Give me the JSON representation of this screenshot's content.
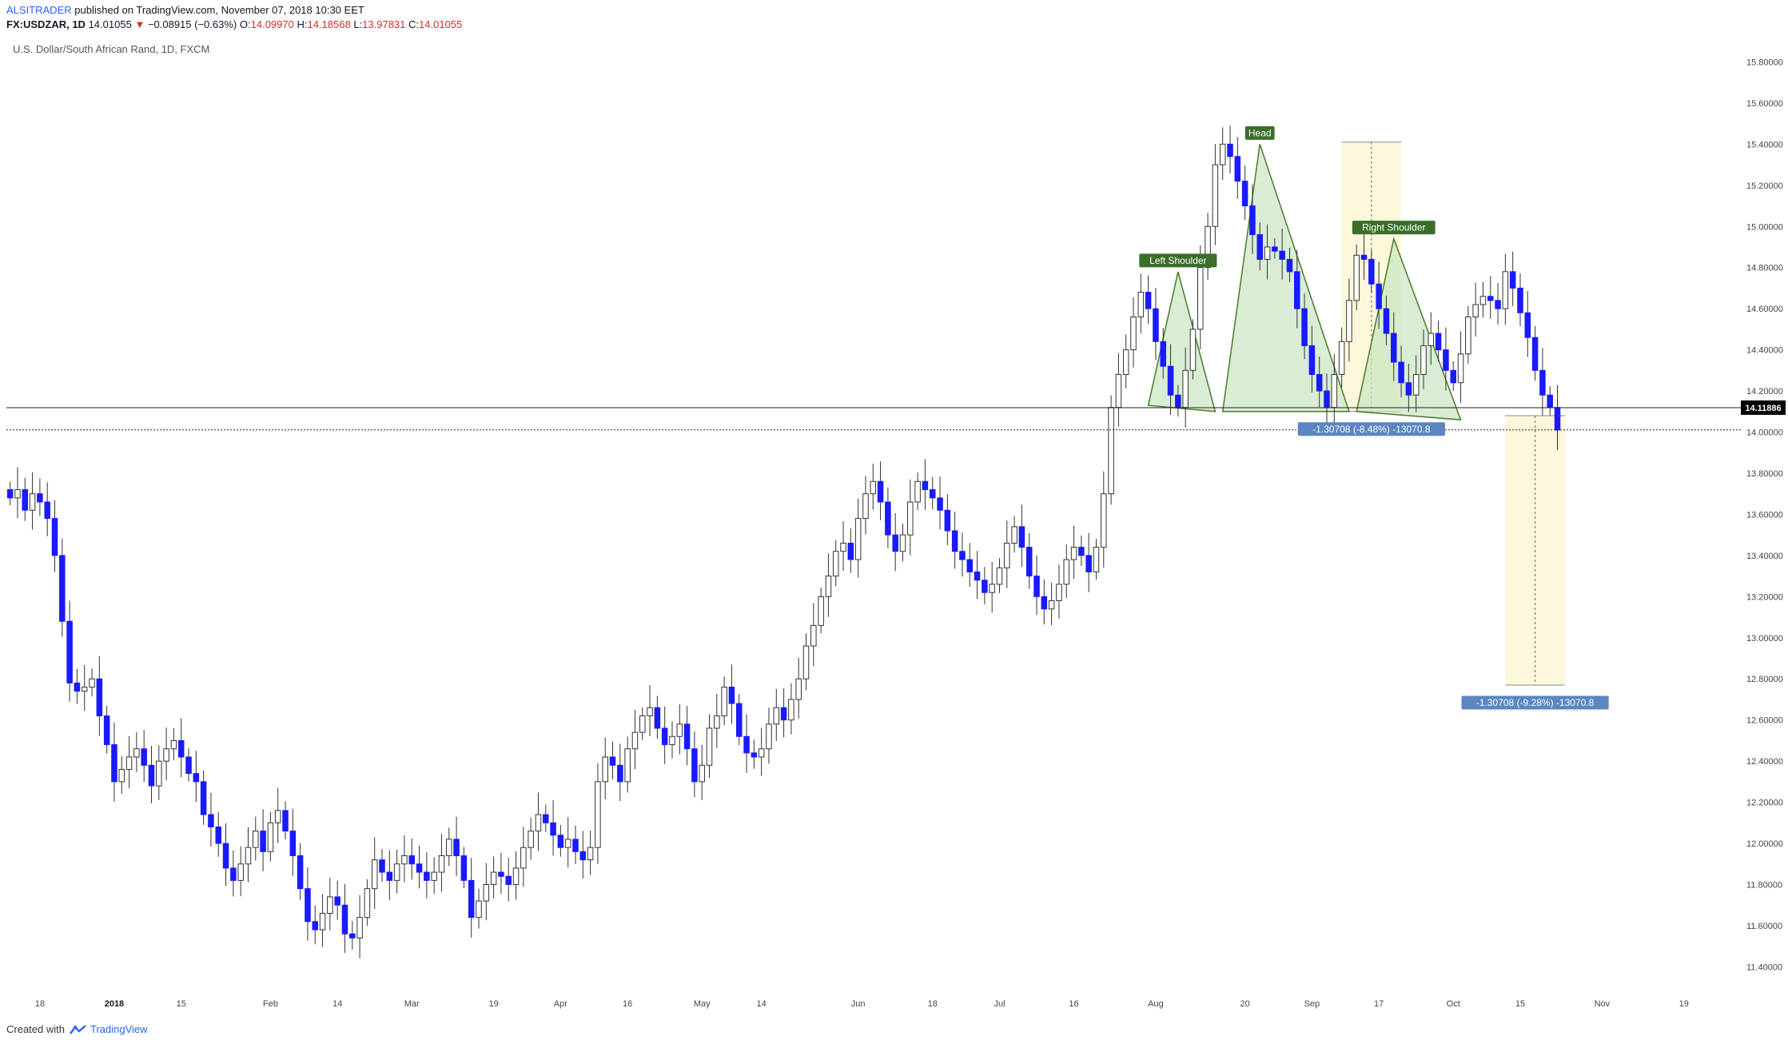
{
  "header": {
    "author": "ALSITRADER",
    "published": "published on TradingView.com, November 07, 2018 10:30 EET",
    "symbol": "FX:USDZAR, 1D",
    "last": "14.01055",
    "change_arrow": "▼",
    "change": "−0.08915 (−0.63%)",
    "open_label": "O:",
    "open": "14.09970",
    "high_label": "H:",
    "high": "14.18568",
    "low_label": "L:",
    "low": "13.97831",
    "close_label": "C:",
    "close": "14.01055"
  },
  "subtitle": "U.S. Dollar/South African Rand, 1D, FXCM",
  "footer": {
    "created_with": "Created with",
    "brand": "TradingView"
  },
  "colors": {
    "up": "#ffffff",
    "down": "#1a1aff",
    "pattern_fill": "#c8e6c0",
    "pattern_line": "#4a7a2a",
    "label_bg": "#3a6e2a",
    "measure_bg": "#5b86c2",
    "zone": "#fdf7dc"
  },
  "chart_data": {
    "type": "candlestick",
    "title": "U.S. Dollar/South African Rand, 1D, FXCM",
    "ylim": [
      11.32,
      15.86
    ],
    "y_ticks": [
      "15.80000",
      "15.60000",
      "15.40000",
      "15.20000",
      "15.00000",
      "14.80000",
      "14.60000",
      "14.40000",
      "14.20000",
      "14.00000",
      "13.80000",
      "13.60000",
      "13.40000",
      "13.20000",
      "13.00000",
      "12.80000",
      "12.60000",
      "12.40000",
      "12.20000",
      "12.00000",
      "11.80000",
      "11.60000",
      "11.40000"
    ],
    "y_tick_values": [
      15.8,
      15.6,
      15.4,
      15.2,
      15.0,
      14.8,
      14.6,
      14.4,
      14.2,
      14.0,
      13.8,
      13.6,
      13.4,
      13.2,
      13.0,
      12.8,
      12.6,
      12.4,
      12.2,
      12.0,
      11.8,
      11.6,
      11.4
    ],
    "x_ticks": [
      {
        "label": "18",
        "bold": false,
        "bar": 4
      },
      {
        "label": "2018",
        "bold": true,
        "bar": 14
      },
      {
        "label": "15",
        "bold": false,
        "bar": 23
      },
      {
        "label": "Feb",
        "bold": false,
        "bar": 35
      },
      {
        "label": "14",
        "bold": false,
        "bar": 44
      },
      {
        "label": "Mar",
        "bold": false,
        "bar": 54
      },
      {
        "label": "19",
        "bold": false,
        "bar": 65
      },
      {
        "label": "Apr",
        "bold": false,
        "bar": 74
      },
      {
        "label": "16",
        "bold": false,
        "bar": 83
      },
      {
        "label": "May",
        "bold": false,
        "bar": 93
      },
      {
        "label": "14",
        "bold": false,
        "bar": 101
      },
      {
        "label": "Jun",
        "bold": false,
        "bar": 114
      },
      {
        "label": "18",
        "bold": false,
        "bar": 124
      },
      {
        "label": "Jul",
        "bold": false,
        "bar": 133
      },
      {
        "label": "16",
        "bold": false,
        "bar": 143
      },
      {
        "label": "Aug",
        "bold": false,
        "bar": 154
      },
      {
        "label": "20",
        "bold": false,
        "bar": 166
      },
      {
        "label": "Sep",
        "bold": false,
        "bar": 175
      },
      {
        "label": "17",
        "bold": false,
        "bar": 184
      },
      {
        "label": "Oct",
        "bold": false,
        "bar": 194
      },
      {
        "label": "15",
        "bold": false,
        "bar": 203
      },
      {
        "label": "Nov",
        "bold": false,
        "bar": 214
      },
      {
        "label": "19",
        "bold": false,
        "bar": 225
      }
    ],
    "bar_count": 228,
    "last_bar_index": 217,
    "closes": [
      13.68,
      13.72,
      13.62,
      13.7,
      13.66,
      13.58,
      13.4,
      13.08,
      12.78,
      12.74,
      12.76,
      12.8,
      12.62,
      12.48,
      12.3,
      12.36,
      12.42,
      12.46,
      12.38,
      12.28,
      12.4,
      12.46,
      12.5,
      12.42,
      12.34,
      12.3,
      12.14,
      12.08,
      12.0,
      11.88,
      11.82,
      11.9,
      11.98,
      12.06,
      11.96,
      12.1,
      12.16,
      12.06,
      11.94,
      11.78,
      11.62,
      11.58,
      11.66,
      11.74,
      11.7,
      11.56,
      11.54,
      11.64,
      11.78,
      11.92,
      11.86,
      11.82,
      11.9,
      11.94,
      11.9,
      11.86,
      11.82,
      11.86,
      11.94,
      12.02,
      11.94,
      11.82,
      11.64,
      11.72,
      11.8,
      11.86,
      11.84,
      11.8,
      11.88,
      11.98,
      12.06,
      12.14,
      12.1,
      12.04,
      11.98,
      12.02,
      11.96,
      11.92,
      11.98,
      12.3,
      12.42,
      12.38,
      12.3,
      12.46,
      12.54,
      12.62,
      12.66,
      12.56,
      12.48,
      12.52,
      12.58,
      12.46,
      12.3,
      12.38,
      12.56,
      12.62,
      12.76,
      12.68,
      12.52,
      12.44,
      12.42,
      12.46,
      12.58,
      12.66,
      12.6,
      12.7,
      12.8,
      12.96,
      13.06,
      13.2,
      13.3,
      13.42,
      13.46,
      13.38,
      13.58,
      13.7,
      13.76,
      13.66,
      13.5,
      13.42,
      13.5,
      13.66,
      13.76,
      13.72,
      13.68,
      13.62,
      13.52,
      13.42,
      13.38,
      13.32,
      13.28,
      13.22,
      13.26,
      13.34,
      13.46,
      13.54,
      13.44,
      13.3,
      13.2,
      13.14,
      13.18,
      13.26,
      13.38,
      13.44,
      13.4,
      13.32,
      13.44,
      13.7,
      14.12,
      14.28,
      14.4,
      14.56,
      14.68,
      14.6,
      14.44,
      14.32,
      14.18,
      14.12,
      14.3,
      14.5,
      14.8,
      15.0,
      15.3,
      15.4,
      15.34,
      15.22,
      15.1,
      14.96,
      14.84,
      14.9,
      14.88,
      14.84,
      14.78,
      14.6,
      14.42,
      14.28,
      14.2,
      14.12,
      14.28,
      14.44,
      14.64,
      14.86,
      14.84,
      14.72,
      14.6,
      14.48,
      14.34,
      14.24,
      14.18,
      14.28,
      14.42,
      14.48,
      14.4,
      14.3,
      14.24,
      14.38,
      14.56,
      14.62,
      14.66,
      14.64,
      14.6,
      14.78,
      14.7,
      14.58,
      14.46,
      14.3,
      14.18,
      14.12,
      14.01
    ],
    "pattern_labels": {
      "left_shoulder": "Left Shoulder",
      "head": "Head",
      "right_shoulder": "Right Shoulder"
    },
    "neckline_price": 14.11886,
    "current_price_dotted": 14.01055,
    "price_label": "14.11886",
    "measure_1": {
      "text": "-1.30708 (-8.48%) -13070.8",
      "from": 15.41,
      "to": 14.1,
      "bar_from": 179,
      "bar_to": 187
    },
    "measure_2": {
      "text": "-1.30708 (-9.28%) -13070.8",
      "from": 14.08,
      "to": 12.77,
      "bar_from": 201,
      "bar_to": 209
    }
  }
}
